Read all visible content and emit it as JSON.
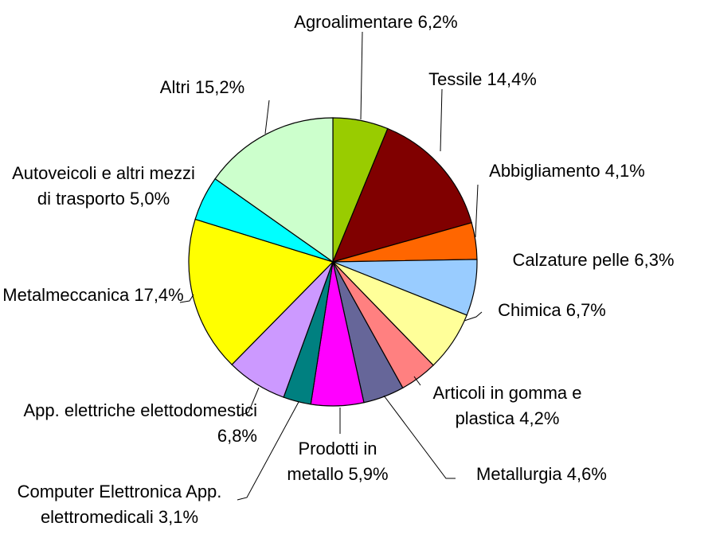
{
  "chart_data": {
    "type": "pie",
    "categories": [
      "Agroalimentare",
      "Tessile",
      "Abbigliamento",
      "Calzature pelle",
      "Chimica",
      "Articoli in gomma e plastica",
      "Metallurgia",
      "Prodotti in metallo",
      "Computer Elettronica App. elettromedicali",
      "App. elettriche elettodomestici",
      "Metalmeccanica",
      "Autoveicoli e altri mezzi di trasporto",
      "Altri"
    ],
    "values": [
      6.2,
      14.4,
      4.1,
      6.3,
      6.7,
      4.2,
      4.6,
      5.9,
      3.1,
      6.8,
      17.4,
      5.0,
      15.2
    ],
    "value_labels": [
      "6,2%",
      "14,4%",
      "4,1%",
      "6,3%",
      "6,7%",
      "4,2%",
      "4,6%",
      "5,9%",
      "3,1%",
      "6,8%",
      "17,4%",
      "5,0%",
      "15,2%"
    ],
    "colors": [
      "#99cc00",
      "#800000",
      "#ff6600",
      "#99ccff",
      "#ffff99",
      "#ff8080",
      "#666699",
      "#ff00ff",
      "#008080",
      "#cc99ff",
      "#ffff00",
      "#00ffff",
      "#ccffcc"
    ]
  }
}
